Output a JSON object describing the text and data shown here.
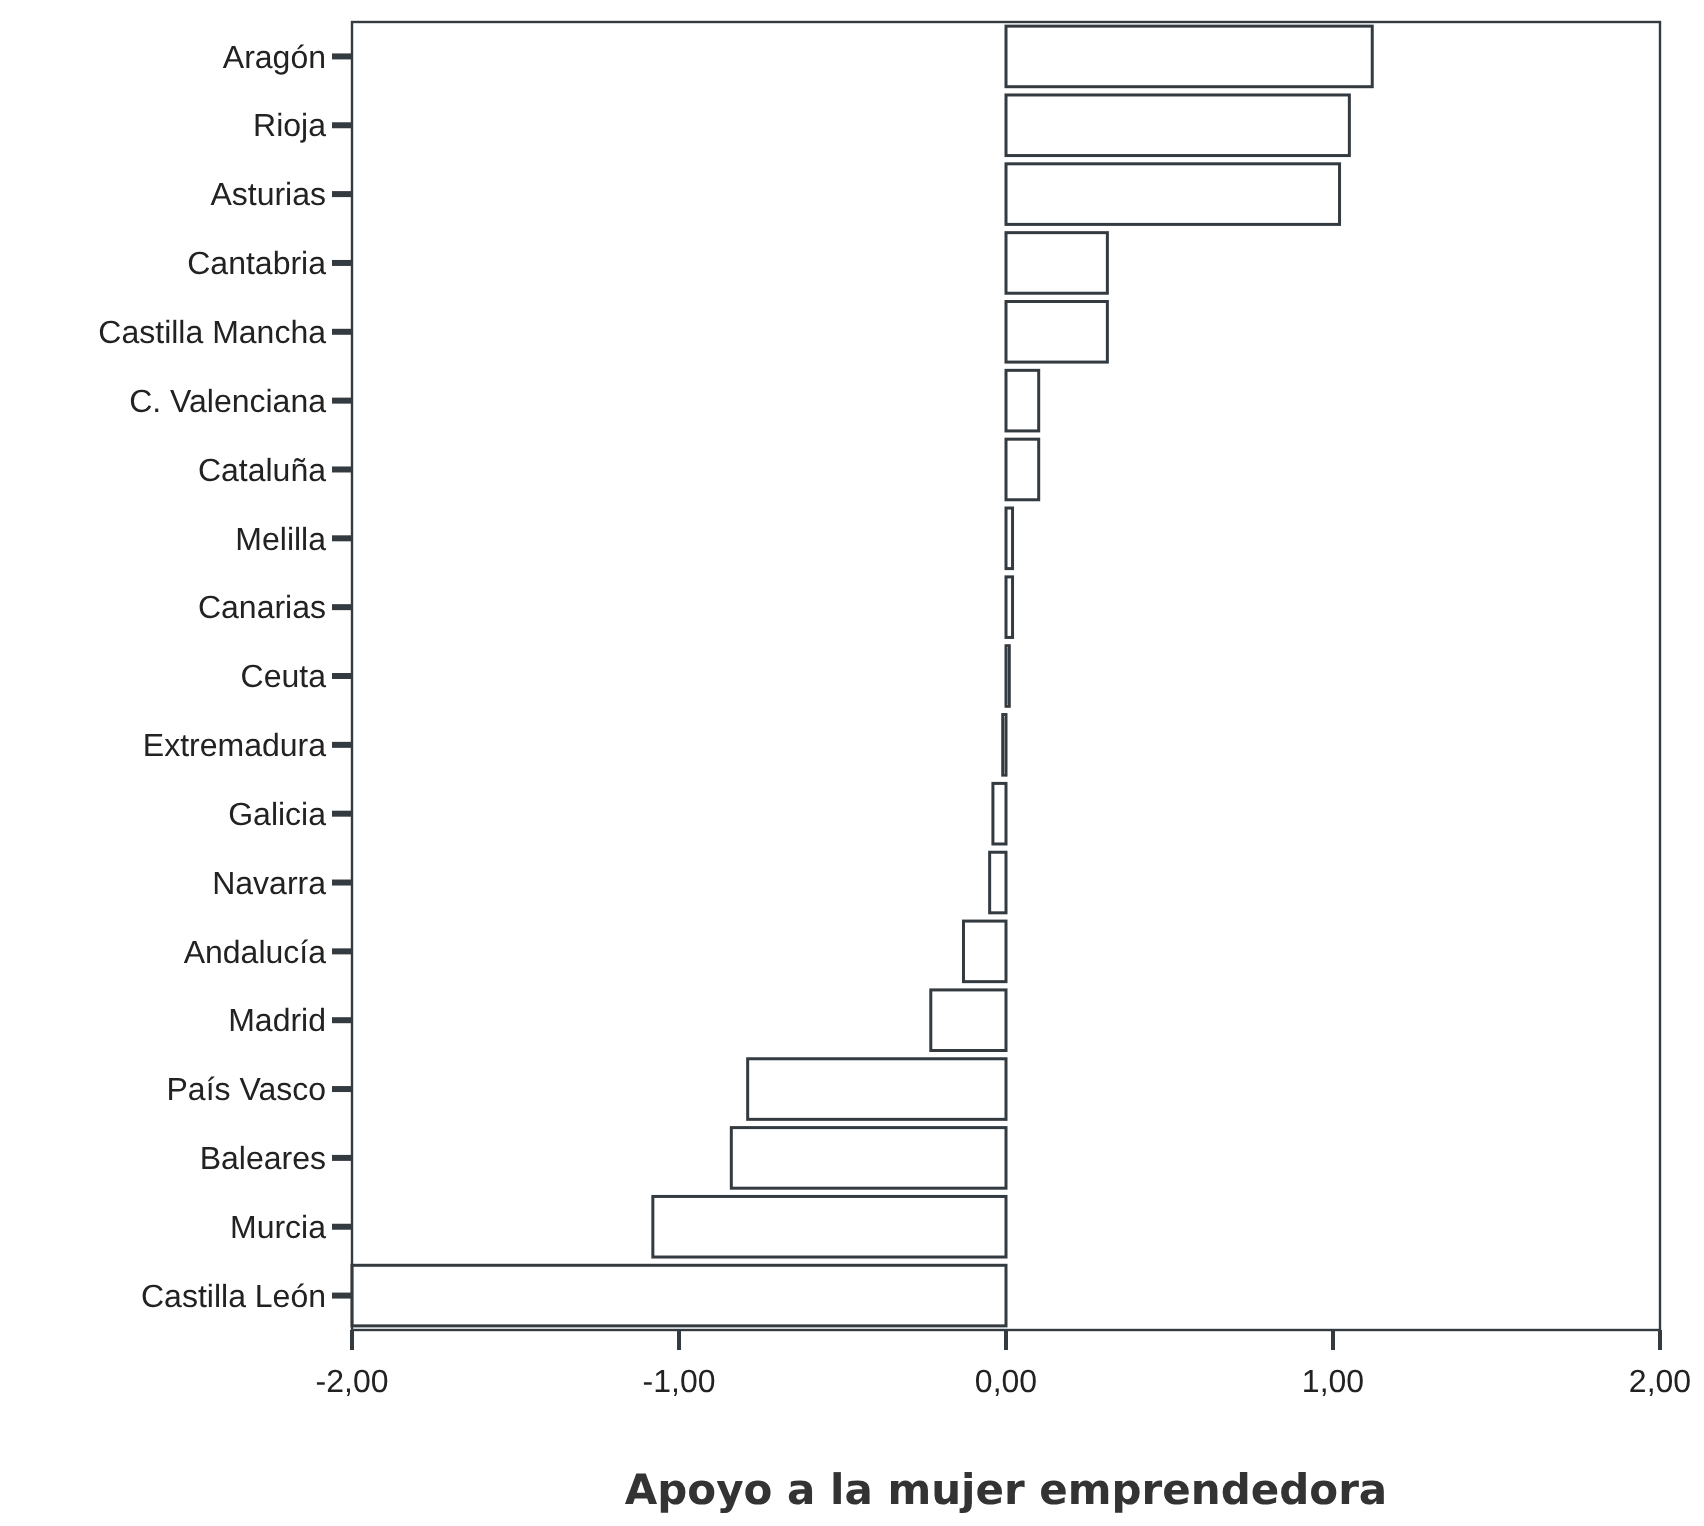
{
  "chart_data": {
    "type": "bar",
    "orientation": "horizontal",
    "xlabel": "Apoyo a la mujer emprendedora",
    "categories": [
      "Aragón",
      "Rioja",
      "Asturias",
      "Cantabria",
      "Castilla Mancha",
      "C. Valenciana",
      "Cataluña",
      "Melilla",
      "Canarias",
      "Ceuta",
      "Extremadura",
      "Galicia",
      "Navarra",
      "Andalucía",
      "Madrid",
      "País Vasco",
      "Baleares",
      "Murcia",
      "Castilla León"
    ],
    "values": [
      1.12,
      1.05,
      1.02,
      0.31,
      0.31,
      0.1,
      0.1,
      0.02,
      0.02,
      0.01,
      -0.01,
      -0.04,
      -0.05,
      -0.13,
      -0.23,
      -0.79,
      -0.84,
      -1.08,
      -2.0
    ],
    "color": "#ffffff",
    "xlim": [
      -2,
      2
    ],
    "xticks": [
      {
        "value": -2,
        "label": "-2,00"
      },
      {
        "value": -1,
        "label": "-1,00"
      },
      {
        "value": 0,
        "label": "0,00"
      },
      {
        "value": 1,
        "label": "1,00"
      },
      {
        "value": 2,
        "label": "2,00"
      }
    ],
    "grid": false
  }
}
